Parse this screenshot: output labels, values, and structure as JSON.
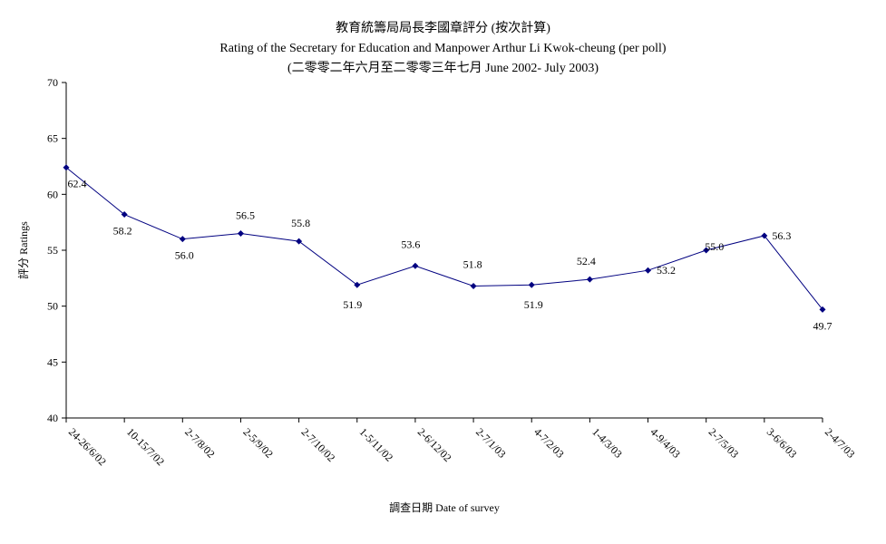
{
  "chart_data": {
    "type": "line",
    "title": "教育統籌局局長李國章評分 (按次計算)",
    "subtitle": "Rating of the Secretary for Education and Manpower Arthur Li Kwok-cheung  (per poll)",
    "subtitle2": "(二零零二年六月至二零零三年七月 June 2002- July 2003)",
    "xlabel": "調查日期 Date of survey",
    "ylabel": "評分 Ratings",
    "ylim": [
      40,
      70
    ],
    "yticks": [
      40,
      45,
      50,
      55,
      60,
      65,
      70
    ],
    "grid": false,
    "legend": "none",
    "categories": [
      "24-26/6/02",
      "10-15/7/02",
      "2-7/8/02",
      "2-5/9/02",
      "2-7/10/02",
      "1-5/11/02",
      "2-6/12/02",
      "2-7/1/03",
      "4-7/2/03",
      "1-4/3/03",
      "4-9/4/03",
      "2-7/5/03",
      "3-6/6/03",
      "2-4/7/03"
    ],
    "series": [
      {
        "values": [
          62.4,
          58.2,
          56.0,
          56.5,
          55.8,
          51.9,
          53.6,
          51.8,
          51.9,
          52.4,
          53.2,
          55.0,
          56.3,
          49.7
        ],
        "labels": [
          "62.4",
          "58.2",
          "56.0",
          "56.5",
          "55.8",
          "51.9",
          "53.6",
          "51.8",
          "51.9",
          "52.4",
          "53.2",
          "55.0",
          "56.3",
          "49.7"
        ],
        "color": "#000080"
      }
    ]
  }
}
